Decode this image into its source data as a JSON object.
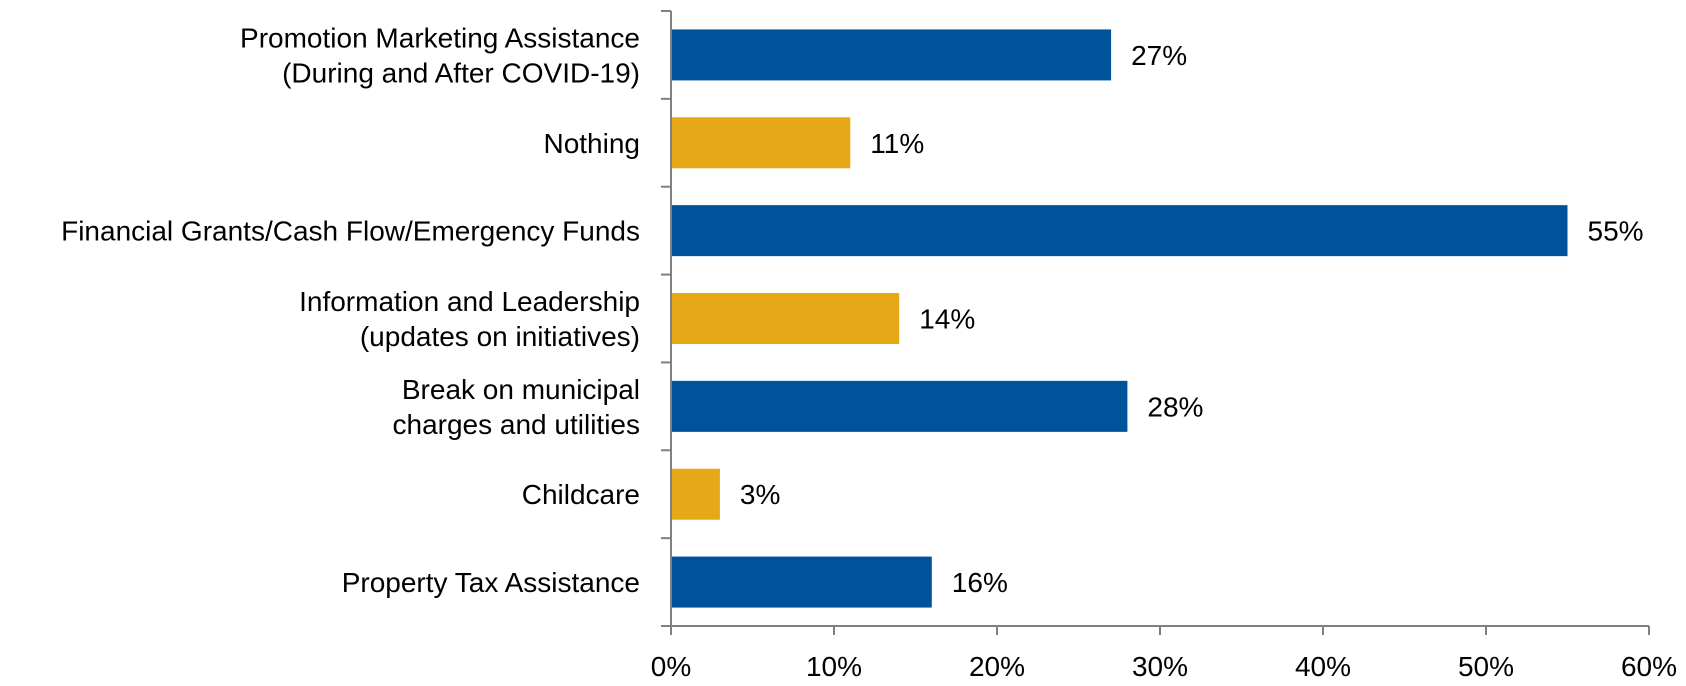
{
  "chart_data": {
    "type": "bar",
    "orientation": "horizontal",
    "categories": [
      [
        "Promotion Marketing Assistance",
        "(During and After COVID-19)"
      ],
      [
        "Nothing"
      ],
      [
        "Financial Grants/Cash Flow/Emergency Funds"
      ],
      [
        "Information and Leadership",
        "(updates on initiatives)"
      ],
      [
        "Break on municipal",
        "charges and utilities"
      ],
      [
        "Childcare"
      ],
      [
        "Property Tax Assistance"
      ]
    ],
    "values": [
      27,
      11,
      55,
      14,
      28,
      3,
      16
    ],
    "value_labels": [
      "27%",
      "11%",
      "55%",
      "14%",
      "28%",
      "3%",
      "16%"
    ],
    "bar_colors": [
      "#00539B",
      "#E6A817",
      "#00539B",
      "#E6A817",
      "#00539B",
      "#E6A817",
      "#00539B"
    ],
    "xlim": [
      0,
      60
    ],
    "xticks": [
      0,
      10,
      20,
      30,
      40,
      50,
      60
    ],
    "xtick_labels": [
      "0%",
      "10%",
      "20%",
      "30%",
      "40%",
      "50%",
      "60%"
    ],
    "axis_color": "#808080",
    "grid": false,
    "legend": "none"
  }
}
